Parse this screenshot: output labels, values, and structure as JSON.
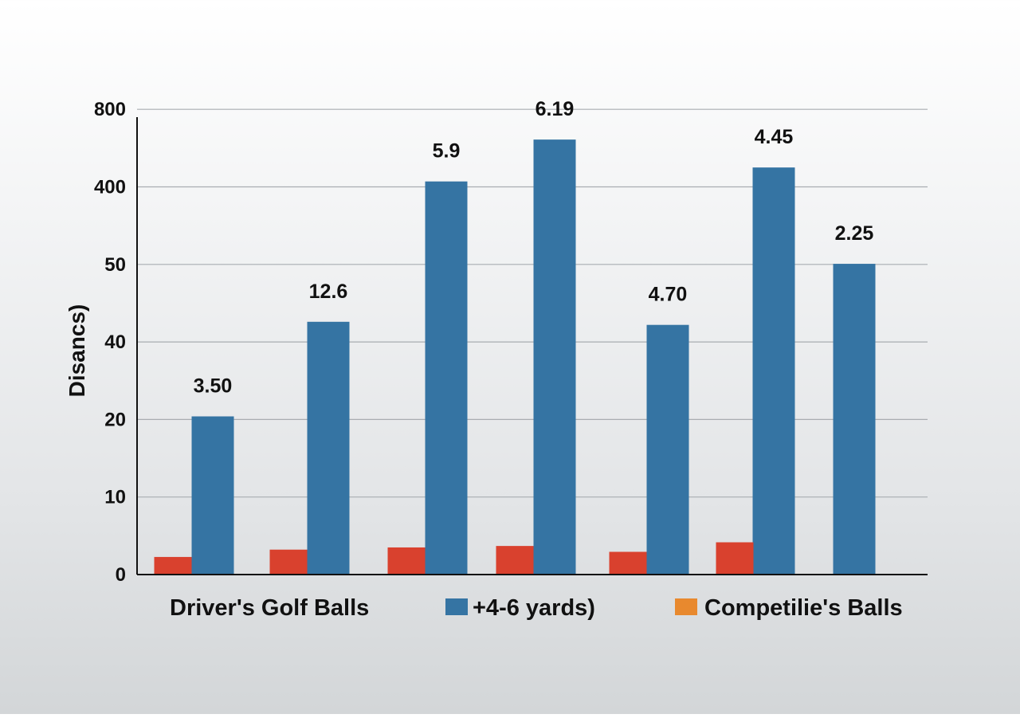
{
  "chart_data": {
    "type": "bar",
    "ylabel": "Disancs)",
    "y_ticks": [
      "800",
      "400",
      "50",
      "40",
      "20",
      "10",
      "0"
    ],
    "grid": true,
    "groups": 7,
    "series": [
      {
        "name": "+4-6 yards)",
        "color": "#3574a3",
        "values": [
          20.8,
          42.6,
          428,
          644,
          42.2,
          500,
          52.6
        ],
        "labels": [
          "3.50",
          "12.6",
          "5.9",
          "6.19",
          "4.70",
          "4.45",
          "2.25"
        ]
      },
      {
        "name": "Competilie's Balls",
        "color": "#d9412e",
        "legend_color": "#e8892e",
        "values": [
          2.4,
          3.4,
          3.7,
          3.9,
          3.1,
          4.4,
          null
        ]
      }
    ],
    "legend": {
      "position": "bottom",
      "title_text": "Driver's Golf Balls"
    }
  }
}
